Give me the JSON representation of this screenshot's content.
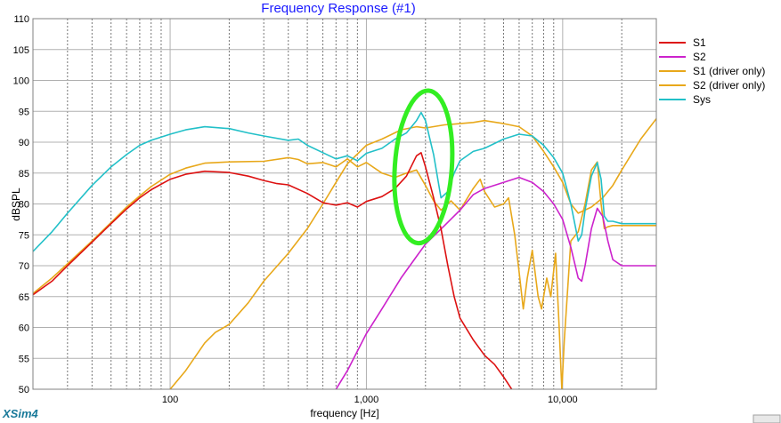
{
  "app_brand": "XSim4",
  "chart_data": {
    "type": "line",
    "title": "Frequency Response (#1)",
    "xlabel": "frequency [Hz]",
    "ylabel": "dBSPL",
    "xscale": "log",
    "xlim": [
      20,
      30000
    ],
    "ylim": [
      50,
      110
    ],
    "grid": true,
    "legend_position": "right",
    "x_tick_labels": [
      {
        "value": 100,
        "label": "100"
      },
      {
        "value": 1000,
        "label": "1,000"
      },
      {
        "value": 10000,
        "label": "10,000"
      }
    ],
    "y_ticks": [
      50,
      55,
      60,
      65,
      70,
      75,
      80,
      85,
      90,
      95,
      100,
      105,
      110
    ],
    "series": [
      {
        "name": "S1",
        "color": "#dd1111",
        "points": [
          [
            20,
            65.3
          ],
          [
            25,
            67.5
          ],
          [
            30,
            70
          ],
          [
            40,
            73.8
          ],
          [
            50,
            76.8
          ],
          [
            60,
            79.2
          ],
          [
            70,
            81
          ],
          [
            80,
            82.3
          ],
          [
            100,
            84
          ],
          [
            120,
            84.8
          ],
          [
            150,
            85.3
          ],
          [
            200,
            85.1
          ],
          [
            250,
            84.5
          ],
          [
            300,
            83.8
          ],
          [
            350,
            83.3
          ],
          [
            400,
            83.1
          ],
          [
            500,
            81.7
          ],
          [
            600,
            80.2
          ],
          [
            700,
            79.8
          ],
          [
            800,
            80.2
          ],
          [
            900,
            79.5
          ],
          [
            1000,
            80.4
          ],
          [
            1200,
            81.2
          ],
          [
            1400,
            82.5
          ],
          [
            1600,
            84.5
          ],
          [
            1800,
            87.8
          ],
          [
            1900,
            88.3
          ],
          [
            2000,
            86
          ],
          [
            2200,
            81
          ],
          [
            2400,
            76
          ],
          [
            2600,
            70
          ],
          [
            2800,
            65
          ],
          [
            3000,
            61.5
          ],
          [
            3500,
            58
          ],
          [
            4000,
            55.5
          ],
          [
            4500,
            54
          ],
          [
            5000,
            52
          ],
          [
            5500,
            50
          ]
        ]
      },
      {
        "name": "S2",
        "color": "#cc22cc",
        "points": [
          [
            700,
            50
          ],
          [
            800,
            53
          ],
          [
            1000,
            59
          ],
          [
            1200,
            63
          ],
          [
            1500,
            68
          ],
          [
            1800,
            71.5
          ],
          [
            2000,
            73.5
          ],
          [
            2500,
            76.5
          ],
          [
            3000,
            79
          ],
          [
            3500,
            81.5
          ],
          [
            4000,
            82.5
          ],
          [
            5000,
            83.5
          ],
          [
            6000,
            84.3
          ],
          [
            7000,
            83.5
          ],
          [
            8000,
            82
          ],
          [
            9000,
            80
          ],
          [
            10000,
            77.5
          ],
          [
            11000,
            73
          ],
          [
            12000,
            68
          ],
          [
            12500,
            67.5
          ],
          [
            13000,
            70
          ],
          [
            14000,
            76
          ],
          [
            15000,
            79.3
          ],
          [
            16000,
            78
          ],
          [
            17000,
            74
          ],
          [
            18000,
            71
          ],
          [
            20000,
            70
          ],
          [
            30000,
            70
          ]
        ]
      },
      {
        "name": "S1 (driver only)",
        "color": "#e8a81a",
        "points": [
          [
            20,
            65.5
          ],
          [
            25,
            68
          ],
          [
            30,
            70.3
          ],
          [
            40,
            74
          ],
          [
            50,
            77
          ],
          [
            60,
            79.5
          ],
          [
            70,
            81.3
          ],
          [
            80,
            82.8
          ],
          [
            100,
            84.8
          ],
          [
            120,
            85.8
          ],
          [
            150,
            86.6
          ],
          [
            200,
            86.8
          ],
          [
            300,
            86.9
          ],
          [
            400,
            87.5
          ],
          [
            450,
            87.2
          ],
          [
            500,
            86.5
          ],
          [
            600,
            86.7
          ],
          [
            700,
            86
          ],
          [
            800,
            87.3
          ],
          [
            900,
            86
          ],
          [
            1000,
            86.7
          ],
          [
            1200,
            85
          ],
          [
            1400,
            84.3
          ],
          [
            1600,
            85
          ],
          [
            1800,
            85.5
          ],
          [
            2000,
            83
          ],
          [
            2200,
            80.5
          ],
          [
            2400,
            79
          ],
          [
            2700,
            80.5
          ],
          [
            3000,
            79
          ],
          [
            3500,
            82.5
          ],
          [
            3800,
            84
          ],
          [
            4000,
            82
          ],
          [
            4500,
            79.5
          ],
          [
            5000,
            80
          ],
          [
            5300,
            81
          ],
          [
            5700,
            75
          ],
          [
            6000,
            69
          ],
          [
            6300,
            63
          ],
          [
            6600,
            68
          ],
          [
            7000,
            72.5
          ],
          [
            7500,
            65
          ],
          [
            7800,
            63
          ],
          [
            8300,
            68
          ],
          [
            8700,
            65
          ],
          [
            9200,
            72
          ],
          [
            9600,
            60
          ],
          [
            9900,
            50
          ],
          [
            10200,
            58
          ],
          [
            11000,
            74
          ],
          [
            12000,
            75.5
          ],
          [
            13000,
            80
          ],
          [
            14000,
            85.5
          ],
          [
            15000,
            86.8
          ],
          [
            15700,
            80
          ],
          [
            16300,
            76
          ],
          [
            17000,
            76.3
          ],
          [
            18000,
            76.5
          ],
          [
            30000,
            76.5
          ]
        ]
      },
      {
        "name": "S2 (driver only)",
        "color": "#e8a81a",
        "points": [
          [
            100,
            50
          ],
          [
            120,
            53
          ],
          [
            150,
            57.5
          ],
          [
            170,
            59.2
          ],
          [
            200,
            60.5
          ],
          [
            250,
            64
          ],
          [
            300,
            67.5
          ],
          [
            400,
            72
          ],
          [
            500,
            76
          ],
          [
            600,
            80
          ],
          [
            700,
            83.5
          ],
          [
            800,
            86.5
          ],
          [
            1000,
            89.5
          ],
          [
            1200,
            90.5
          ],
          [
            1500,
            92
          ],
          [
            1800,
            92.5
          ],
          [
            2000,
            92.3
          ],
          [
            2500,
            92.8
          ],
          [
            3000,
            93
          ],
          [
            3500,
            93.2
          ],
          [
            4000,
            93.5
          ],
          [
            5000,
            93
          ],
          [
            6000,
            92.5
          ],
          [
            7000,
            91
          ],
          [
            8000,
            88.5
          ],
          [
            9000,
            86
          ],
          [
            10000,
            83.5
          ],
          [
            11000,
            80
          ],
          [
            12000,
            78.5
          ],
          [
            14000,
            79.5
          ],
          [
            16000,
            81
          ],
          [
            18000,
            83
          ],
          [
            20000,
            85.5
          ],
          [
            25000,
            90.5
          ],
          [
            30000,
            93.8
          ]
        ]
      },
      {
        "name": "Sys",
        "color": "#22c0c8",
        "points": [
          [
            20,
            72.3
          ],
          [
            25,
            75.5
          ],
          [
            30,
            78.5
          ],
          [
            40,
            83
          ],
          [
            50,
            86
          ],
          [
            60,
            88
          ],
          [
            70,
            89.5
          ],
          [
            80,
            90.3
          ],
          [
            100,
            91.3
          ],
          [
            120,
            92
          ],
          [
            150,
            92.5
          ],
          [
            200,
            92.2
          ],
          [
            250,
            91.5
          ],
          [
            300,
            91
          ],
          [
            400,
            90.3
          ],
          [
            450,
            90.5
          ],
          [
            500,
            89.5
          ],
          [
            600,
            88.3
          ],
          [
            700,
            87.3
          ],
          [
            800,
            87.8
          ],
          [
            900,
            87
          ],
          [
            1000,
            88.2
          ],
          [
            1200,
            89
          ],
          [
            1400,
            90.5
          ],
          [
            1600,
            91.5
          ],
          [
            1800,
            93.5
          ],
          [
            1900,
            94.8
          ],
          [
            2000,
            93.5
          ],
          [
            2200,
            88
          ],
          [
            2400,
            81
          ],
          [
            2600,
            82
          ],
          [
            2800,
            85
          ],
          [
            3000,
            87
          ],
          [
            3500,
            88.5
          ],
          [
            4000,
            89
          ],
          [
            5000,
            90.5
          ],
          [
            6000,
            91.3
          ],
          [
            7000,
            91
          ],
          [
            8000,
            89.5
          ],
          [
            9000,
            87.5
          ],
          [
            10000,
            85
          ],
          [
            11000,
            80
          ],
          [
            12000,
            74
          ],
          [
            12500,
            75
          ],
          [
            13000,
            79
          ],
          [
            14000,
            84.5
          ],
          [
            15000,
            86.7
          ],
          [
            15700,
            84
          ],
          [
            16300,
            78
          ],
          [
            17000,
            77.2
          ],
          [
            18000,
            77.2
          ],
          [
            20000,
            76.8
          ],
          [
            30000,
            76.8
          ]
        ]
      }
    ],
    "annotation": {
      "shape": "ellipse",
      "color": "#33ee22",
      "cx_hz": 1950,
      "cy_db": 86
    }
  }
}
